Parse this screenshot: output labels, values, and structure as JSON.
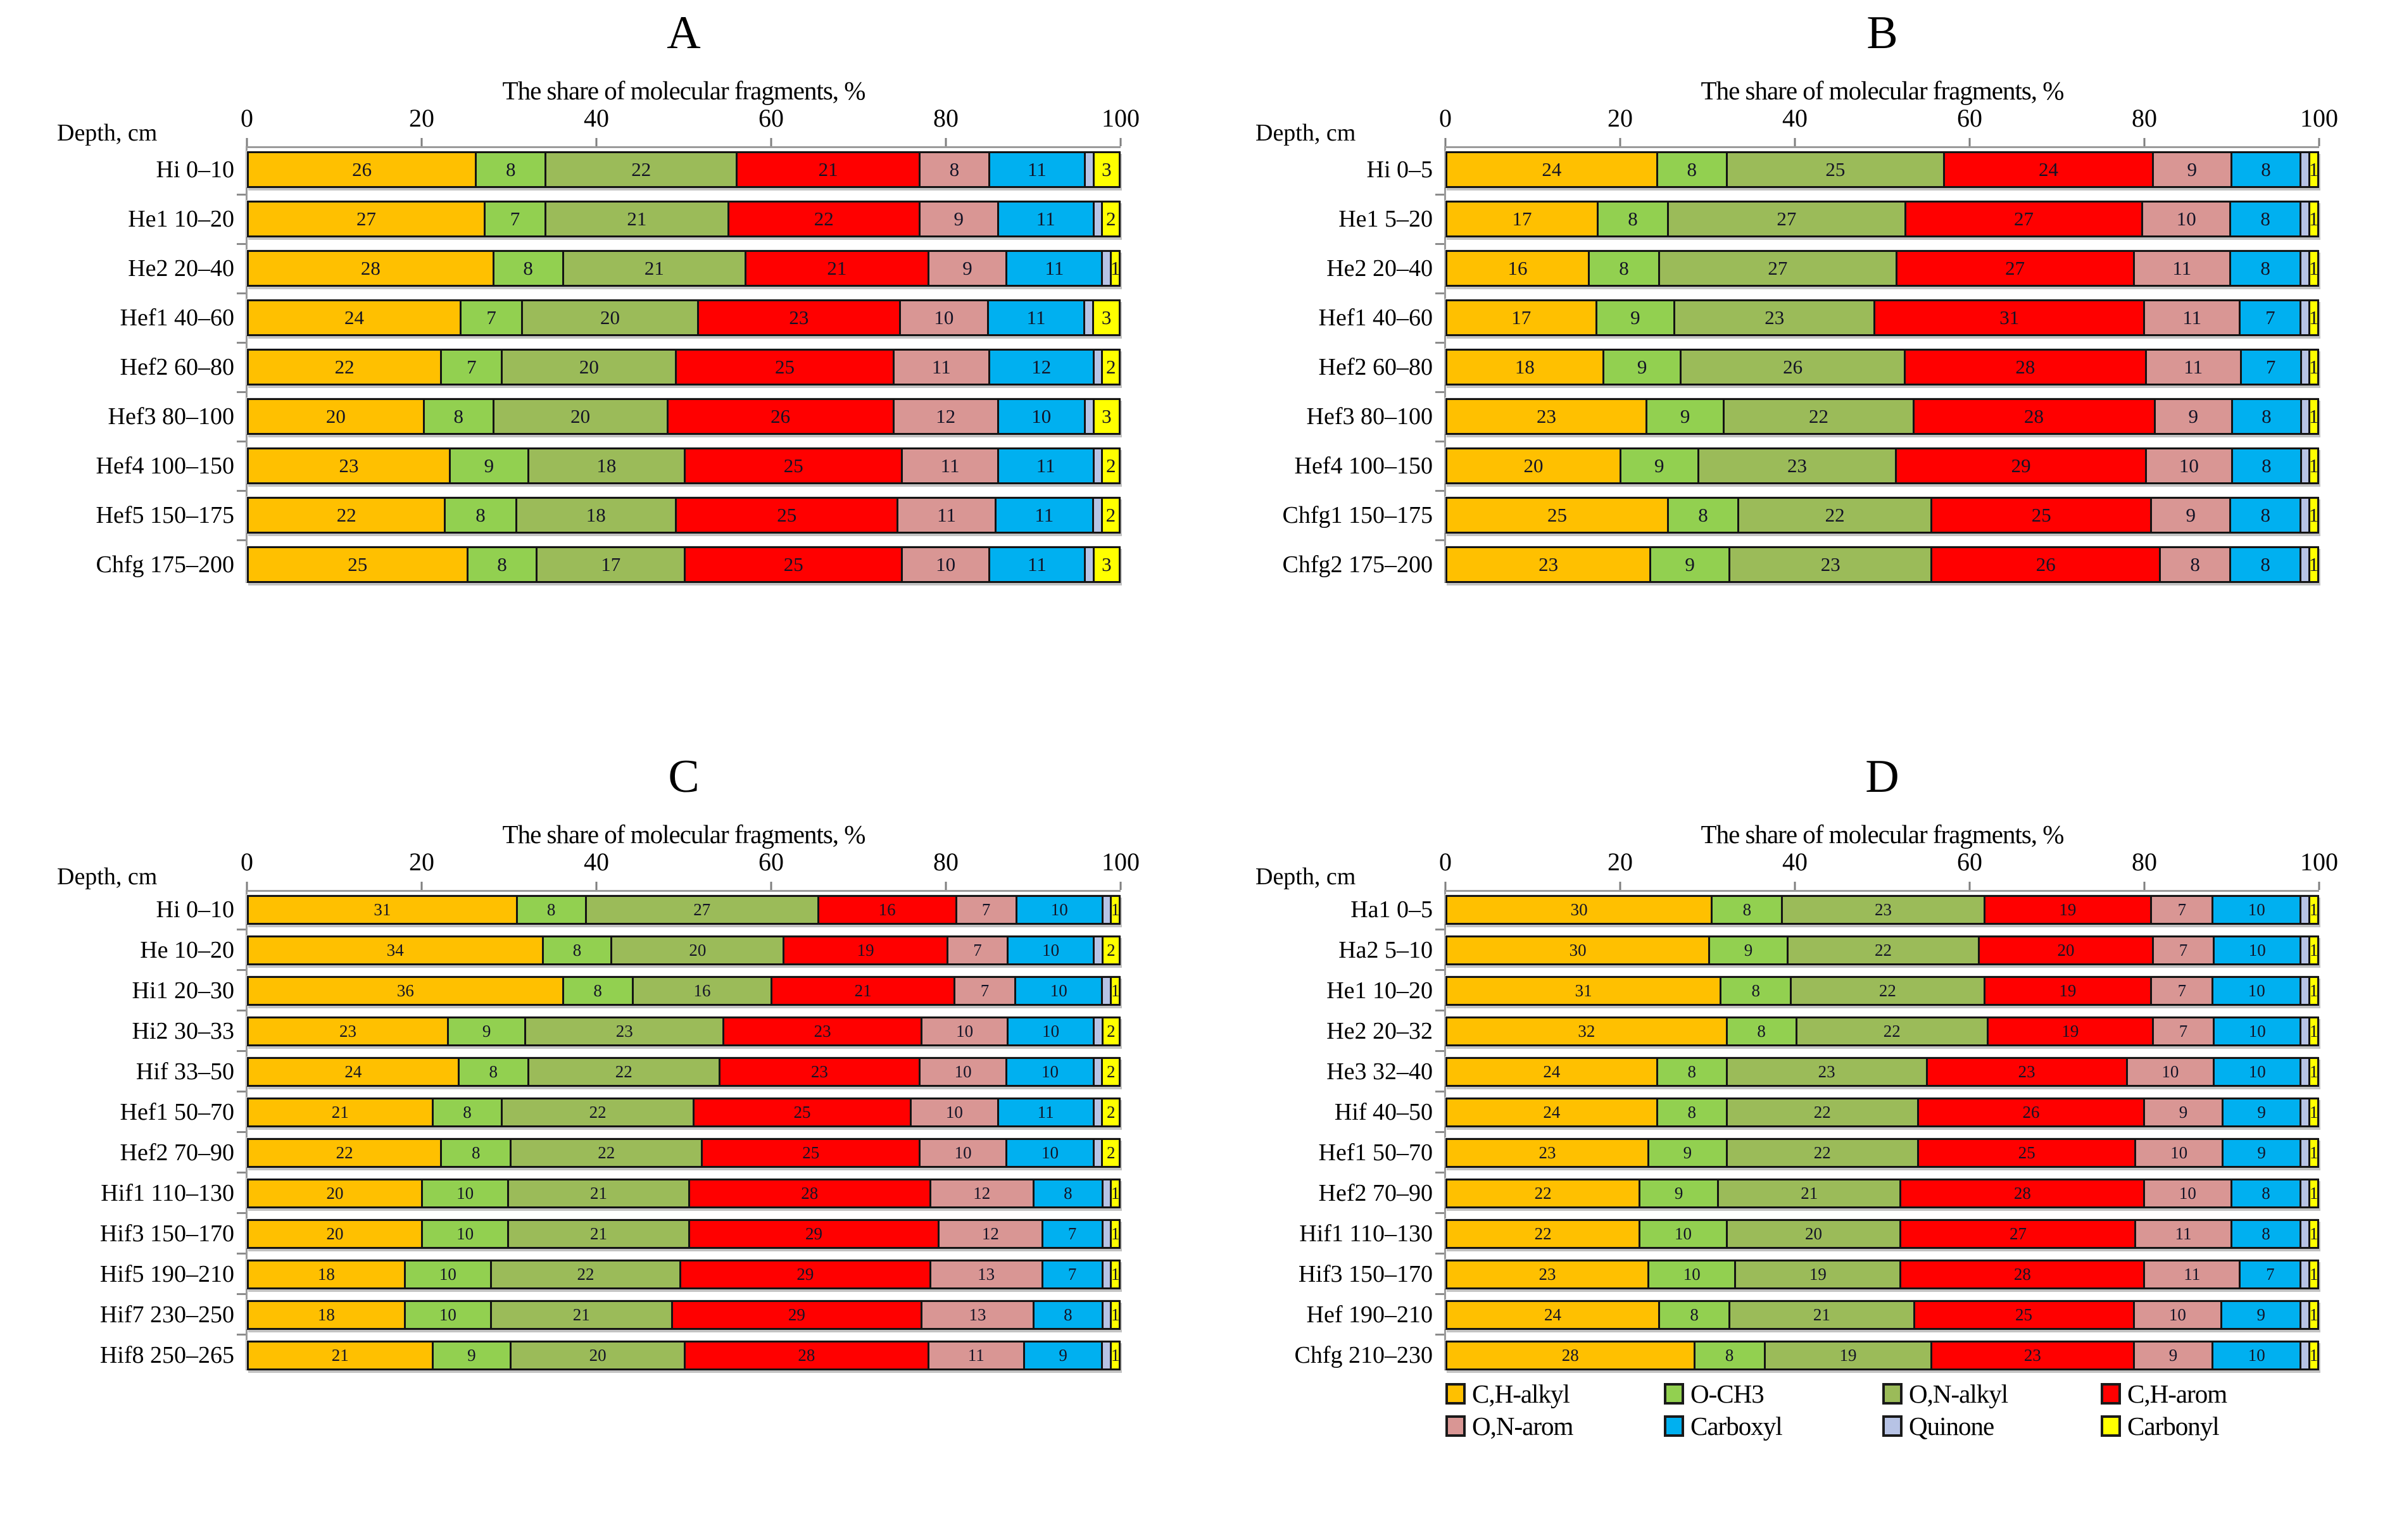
{
  "legend": [
    {
      "key": "ch_alkyl",
      "label": "C,H-alkyl",
      "color": "#FFC000"
    },
    {
      "key": "o_ch3",
      "label": "O-CH3",
      "color": "#92D050"
    },
    {
      "key": "on_alkyl",
      "label": "O,N-alkyl",
      "color": "#9BBB59"
    },
    {
      "key": "ch_arom",
      "label": "C,H-arom",
      "color": "#FF0000"
    },
    {
      "key": "on_arom",
      "label": "O,N-arom",
      "color": "#D99694"
    },
    {
      "key": "carboxyl",
      "label": "Carboxyl",
      "color": "#00B0F0"
    },
    {
      "key": "quinone",
      "label": "Quinone",
      "color": "#B7C3E5"
    },
    {
      "key": "carbonyl",
      "label": "Carbonyl",
      "color": "#FFFF00"
    }
  ],
  "chart_data": [
    {
      "panel_letter": "A",
      "type": "bar",
      "stacked": true,
      "orientation": "horizontal",
      "x_axis": {
        "title": "The share of molecular fragments, %",
        "ticks": [
          0,
          20,
          40,
          60,
          80,
          100
        ],
        "range": [
          0,
          100
        ]
      },
      "y_axis": {
        "title": "Depth, cm"
      },
      "categories": [
        "Hi 0–10",
        "He1 10–20",
        "He2 20–40",
        "Hef1 40–60",
        "Hef2 60–80",
        "Hef3 80–100",
        "Hef4 100–150",
        "Hef5 150–175",
        "Chfg 175–200"
      ],
      "series": [
        {
          "key": "ch_alkyl",
          "name": "C,H-alkyl",
          "values": [
            26,
            27,
            28,
            24,
            22,
            20,
            23,
            22,
            25
          ]
        },
        {
          "key": "o_ch3",
          "name": "O-CH3",
          "values": [
            8,
            7,
            8,
            7,
            7,
            8,
            9,
            8,
            8
          ]
        },
        {
          "key": "on_alkyl",
          "name": "O,N-alkyl",
          "values": [
            22,
            21,
            21,
            20,
            20,
            20,
            18,
            18,
            17
          ]
        },
        {
          "key": "ch_arom",
          "name": "C,H-arom",
          "values": [
            21,
            22,
            21,
            23,
            25,
            26,
            25,
            25,
            25
          ]
        },
        {
          "key": "on_arom",
          "name": "O,N-arom",
          "values": [
            8,
            9,
            9,
            10,
            11,
            12,
            11,
            11,
            10
          ]
        },
        {
          "key": "carboxyl",
          "name": "Carboxyl",
          "values": [
            11,
            11,
            11,
            11,
            12,
            10,
            11,
            11,
            11
          ]
        },
        {
          "key": "quinone",
          "name": "Quinone",
          "values": [
            1,
            1,
            1,
            1,
            1,
            1,
            1,
            1,
            1
          ]
        },
        {
          "key": "carbonyl",
          "name": "Carbonyl",
          "values": [
            3,
            2,
            1,
            3,
            2,
            3,
            2,
            2,
            3
          ]
        }
      ]
    },
    {
      "panel_letter": "B",
      "type": "bar",
      "stacked": true,
      "orientation": "horizontal",
      "x_axis": {
        "title": "The share of molecular fragments, %",
        "ticks": [
          0,
          20,
          40,
          60,
          80,
          100
        ],
        "range": [
          0,
          100
        ]
      },
      "y_axis": {
        "title": "Depth, cm"
      },
      "categories": [
        "Hi 0–5",
        "He1 5–20",
        "He2 20–40",
        "Hef1 40–60",
        "Hef2 60–80",
        "Hef3 80–100",
        "Hef4 100–150",
        "Chfg1 150–175",
        "Chfg2 175–200"
      ],
      "series": [
        {
          "key": "ch_alkyl",
          "name": "C,H-alkyl",
          "values": [
            24,
            17,
            16,
            17,
            18,
            23,
            20,
            25,
            23
          ]
        },
        {
          "key": "o_ch3",
          "name": "O-CH3",
          "values": [
            8,
            8,
            8,
            9,
            9,
            9,
            9,
            8,
            9
          ]
        },
        {
          "key": "on_alkyl",
          "name": "O,N-alkyl",
          "values": [
            25,
            27,
            27,
            23,
            26,
            22,
            23,
            22,
            23
          ]
        },
        {
          "key": "ch_arom",
          "name": "C,H-arom",
          "values": [
            24,
            27,
            27,
            31,
            28,
            28,
            29,
            25,
            26
          ]
        },
        {
          "key": "on_arom",
          "name": "O,N-arom",
          "values": [
            9,
            10,
            11,
            11,
            11,
            9,
            10,
            9,
            8
          ]
        },
        {
          "key": "carboxyl",
          "name": "Carboxyl",
          "values": [
            8,
            8,
            8,
            7,
            7,
            8,
            8,
            8,
            8
          ]
        },
        {
          "key": "quinone",
          "name": "Quinone",
          "values": [
            1,
            1,
            1,
            1,
            1,
            1,
            1,
            1,
            1
          ]
        },
        {
          "key": "carbonyl",
          "name": "Carbonyl",
          "values": [
            1,
            1,
            1,
            1,
            1,
            1,
            1,
            1,
            1
          ]
        }
      ]
    },
    {
      "panel_letter": "C",
      "type": "bar",
      "stacked": true,
      "orientation": "horizontal",
      "x_axis": {
        "title": "The share of molecular fragments, %",
        "ticks": [
          0,
          20,
          40,
          60,
          80,
          100
        ],
        "range": [
          0,
          100
        ]
      },
      "y_axis": {
        "title": "Depth, cm"
      },
      "categories": [
        "Hi 0–10",
        "He 10–20",
        "Hi1 20–30",
        "Hi2 30–33",
        "Hif 33–50",
        "Hef1 50–70",
        "Hef2 70–90",
        "Hif1 110–130",
        "Hif3 150–170",
        "Hif5 190–210",
        "Hif7 230–250",
        "Hif8 250–265"
      ],
      "series": [
        {
          "key": "ch_alkyl",
          "name": "C,H-alkyl",
          "values": [
            31,
            34,
            36,
            23,
            24,
            21,
            22,
            20,
            20,
            18,
            18,
            21
          ]
        },
        {
          "key": "o_ch3",
          "name": "O-CH3",
          "values": [
            8,
            8,
            8,
            9,
            8,
            8,
            8,
            10,
            10,
            10,
            10,
            9
          ]
        },
        {
          "key": "on_alkyl",
          "name": "O,N-alkyl",
          "values": [
            27,
            20,
            16,
            23,
            22,
            22,
            22,
            21,
            21,
            22,
            21,
            20
          ]
        },
        {
          "key": "ch_arom",
          "name": "C,H-arom",
          "values": [
            16,
            19,
            21,
            23,
            23,
            25,
            25,
            28,
            29,
            29,
            29,
            28
          ]
        },
        {
          "key": "on_arom",
          "name": "O,N-arom",
          "values": [
            7,
            7,
            7,
            10,
            10,
            10,
            10,
            12,
            12,
            13,
            13,
            11
          ]
        },
        {
          "key": "carboxyl",
          "name": "Carboxyl",
          "values": [
            10,
            10,
            10,
            10,
            10,
            11,
            10,
            8,
            7,
            7,
            8,
            9
          ]
        },
        {
          "key": "quinone",
          "name": "Quinone",
          "values": [
            1,
            1,
            1,
            1,
            1,
            1,
            1,
            1,
            1,
            1,
            1,
            1
          ]
        },
        {
          "key": "carbonyl",
          "name": "Carbonyl",
          "values": [
            1,
            2,
            1,
            2,
            2,
            2,
            2,
            1,
            1,
            1,
            1,
            1
          ]
        }
      ]
    },
    {
      "panel_letter": "D",
      "type": "bar",
      "stacked": true,
      "orientation": "horizontal",
      "x_axis": {
        "title": "The share of molecular fragments, %",
        "ticks": [
          0,
          20,
          40,
          60,
          80,
          100
        ],
        "range": [
          0,
          100
        ]
      },
      "y_axis": {
        "title": "Depth, cm"
      },
      "categories": [
        "Ha1 0–5",
        "Ha2 5–10",
        "He1 10–20",
        "He2 20–32",
        "He3 32–40",
        "Hif 40–50",
        "Hef1 50–70",
        "Hef2 70–90",
        "Hif1 110–130",
        "Hif3 150–170",
        "Hef 190–210",
        "Chfg 210–230"
      ],
      "series": [
        {
          "key": "ch_alkyl",
          "name": "C,H-alkyl",
          "values": [
            30,
            30,
            31,
            32,
            24,
            24,
            23,
            22,
            22,
            23,
            24,
            28
          ]
        },
        {
          "key": "o_ch3",
          "name": "O-CH3",
          "values": [
            8,
            9,
            8,
            8,
            8,
            8,
            9,
            9,
            10,
            10,
            8,
            8
          ]
        },
        {
          "key": "on_alkyl",
          "name": "O,N-alkyl",
          "values": [
            23,
            22,
            22,
            22,
            23,
            22,
            22,
            21,
            20,
            19,
            21,
            19
          ]
        },
        {
          "key": "ch_arom",
          "name": "C,H-arom",
          "values": [
            19,
            20,
            19,
            19,
            23,
            26,
            25,
            28,
            27,
            28,
            25,
            23
          ]
        },
        {
          "key": "on_arom",
          "name": "O,N-arom",
          "values": [
            7,
            7,
            7,
            7,
            10,
            9,
            10,
            10,
            11,
            11,
            10,
            9
          ]
        },
        {
          "key": "carboxyl",
          "name": "Carboxyl",
          "values": [
            10,
            10,
            10,
            10,
            10,
            9,
            9,
            8,
            8,
            7,
            9,
            10
          ]
        },
        {
          "key": "quinone",
          "name": "Quinone",
          "values": [
            1,
            1,
            1,
            1,
            1,
            1,
            1,
            1,
            1,
            1,
            1,
            1
          ]
        },
        {
          "key": "carbonyl",
          "name": "Carbonyl",
          "values": [
            1,
            1,
            1,
            1,
            1,
            1,
            1,
            1,
            1,
            1,
            1,
            1
          ]
        }
      ]
    }
  ]
}
